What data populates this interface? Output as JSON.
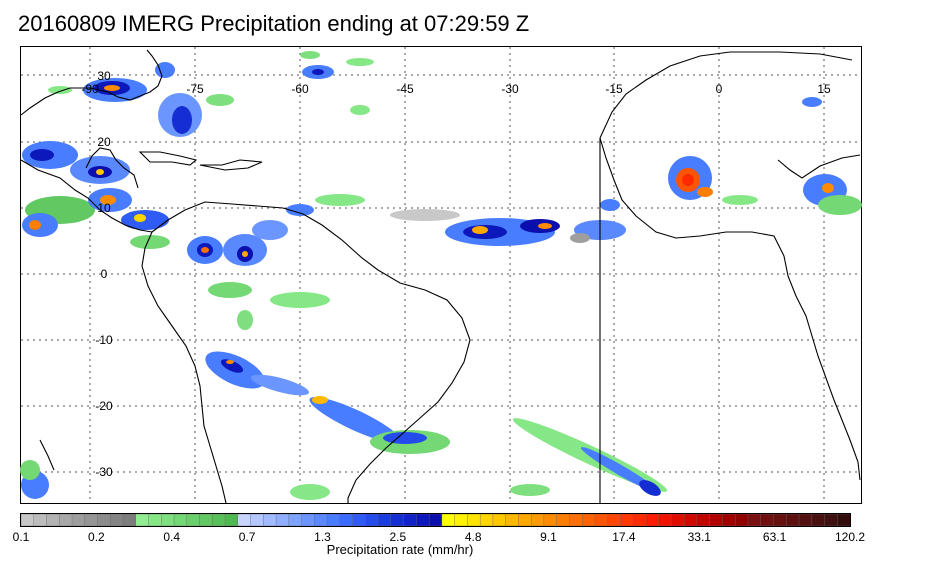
{
  "title": "20160809 IMERG Precipitation ending at 07:29:59 Z",
  "map": {
    "lon_labels": [
      "-90",
      "-75",
      "-60",
      "-45",
      "-30",
      "-15",
      "0",
      "15"
    ],
    "lat_labels": [
      "30",
      "20",
      "10",
      "0",
      "-10",
      "-20",
      "-30"
    ]
  },
  "colorbar": {
    "label": "Precipitation rate (mm/hr)",
    "tick_labels": [
      "0.1",
      "0.2",
      "0.4",
      "0.7",
      "1.3",
      "2.5",
      "4.8",
      "9.1",
      "17.4",
      "33.1",
      "63.1",
      "120.2"
    ],
    "colors": [
      "#c8c8c8",
      "#bdbdbd",
      "#b2b2b2",
      "#a8a8a8",
      "#9e9e9e",
      "#959595",
      "#8c8c8c",
      "#848484",
      "#7d7d7d",
      "#90ee90",
      "#86e786",
      "#7ddf7d",
      "#74d874",
      "#6bd06b",
      "#62c862",
      "#59c059",
      "#50b850",
      "#c6d4ff",
      "#b4c8ff",
      "#a2bbff",
      "#90afff",
      "#7ea2ff",
      "#6c96ff",
      "#5a89ff",
      "#487dff",
      "#3a6cff",
      "#2e5cf5",
      "#234ceb",
      "#1a3ce0",
      "#142ed4",
      "#1022c8",
      "#0c17bc",
      "#0a0fae",
      "#ffff00",
      "#fff200",
      "#ffe400",
      "#ffd600",
      "#ffc800",
      "#ffb800",
      "#ffa800",
      "#ff9a00",
      "#ff8c00",
      "#ff7e00",
      "#ff7000",
      "#ff6200",
      "#ff5400",
      "#ff4600",
      "#ff3800",
      "#ff2a00",
      "#ff1c00",
      "#f01400",
      "#e00c00",
      "#d00800",
      "#c00400",
      "#b00000",
      "#a00000",
      "#900000",
      "#7a1010",
      "#701010",
      "#661010",
      "#5c1010",
      "#521010",
      "#481010",
      "#3e1010",
      "#340c0c"
    ]
  }
}
